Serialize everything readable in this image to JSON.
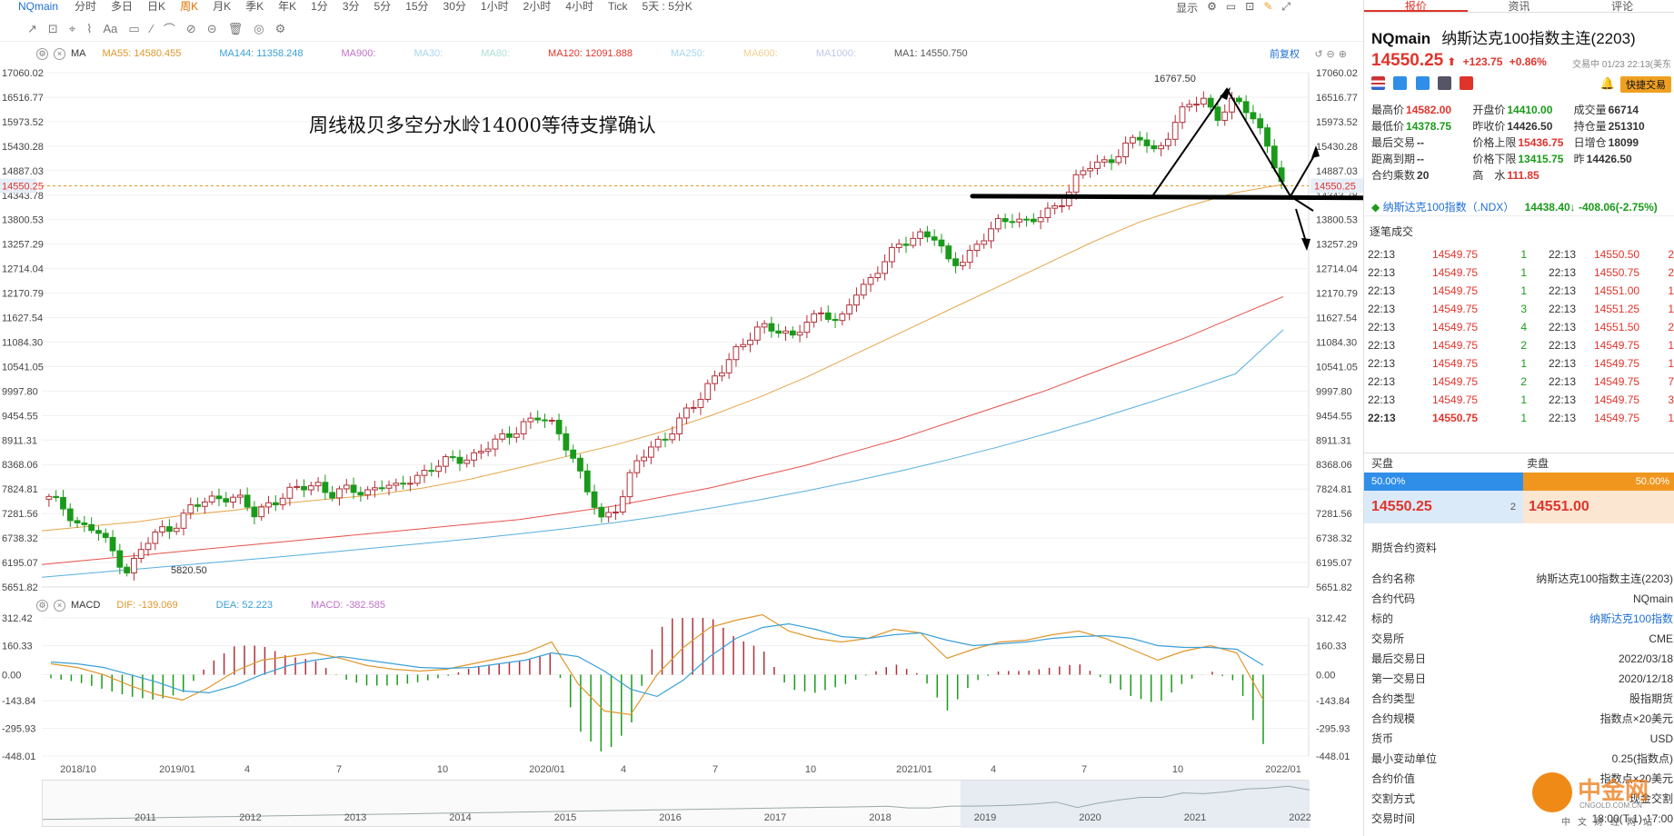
{
  "toolbar": {
    "symbol": "NQmain",
    "periods": [
      "分时",
      "多日",
      "日K",
      "周K",
      "月K",
      "季K",
      "年K",
      "1分",
      "3分",
      "5分",
      "15分",
      "30分",
      "1小时",
      "2小时",
      "4小时",
      "Tick",
      "5天 : 5分K"
    ],
    "active_period": "周K",
    "right_label": "显示"
  },
  "draw_tools": [
    "↗",
    "⊡",
    "⌖",
    "⌇",
    "Aa",
    "▭",
    "∕",
    "⌒",
    "⊘",
    "⊝",
    "🗑",
    "◎",
    "⚙"
  ],
  "ma_legend": {
    "label": "MA",
    "items": [
      {
        "text": "MA55: 14580.455",
        "color": "#e0962b"
      },
      {
        "text": "MA144: 11358.248",
        "color": "#3aa0d8"
      },
      {
        "text": "MA900:",
        "color": "#c070c8"
      },
      {
        "text": "MA30:",
        "color": "#a9d5f0"
      },
      {
        "text": "MA80:",
        "color": "#b0e0d8"
      },
      {
        "text": "MA120: 12091.888",
        "color": "#e0342b"
      },
      {
        "text": "MA250:",
        "color": "#a9d5f0"
      },
      {
        "text": "MA600:",
        "color": "#f0d090"
      },
      {
        "text": "MA1000:",
        "color": "#c0c8e8"
      },
      {
        "text": "MA1: 14550.750",
        "color": "#555555"
      }
    ],
    "fq_label": "前复权"
  },
  "annotation": "周线极贝多空分水岭14000等待支撑确认",
  "chart_data": [
    {
      "type": "candlestick",
      "title": "",
      "ylim": [
        5651.82,
        17060.02
      ],
      "y_ticks": [
        17060.02,
        16516.77,
        15973.52,
        15430.28,
        14887.03,
        14343.78,
        13800.53,
        13257.29,
        12714.04,
        12170.79,
        11627.54,
        11084.3,
        10541.05,
        9997.8,
        9454.55,
        8911.31,
        8368.06,
        7824.81,
        7281.56,
        6738.32,
        6195.07,
        5651.82
      ],
      "x_labels": [
        "2018/10",
        "2019/01",
        "4",
        "7",
        "10",
        "2020/01",
        "4",
        "7",
        "10",
        "2021/01",
        "4",
        "7",
        "10",
        "2022/01"
      ],
      "current_price": 14550.25,
      "annotations": [
        {
          "text": "16767.50",
          "kind": "high"
        },
        {
          "text": "5820.50",
          "kind": "low"
        }
      ],
      "support_level": 14000,
      "weekly_close_path": [
        7600,
        7400,
        7000,
        6900,
        6450,
        6000,
        6550,
        6900,
        7050,
        7400,
        7550,
        7700,
        7600,
        7250,
        7550,
        7700,
        7850,
        7950,
        7700,
        7800,
        7750,
        7950,
        7800,
        8100,
        8250,
        8400,
        8500,
        8600,
        8800,
        9000,
        9300,
        9400,
        9200,
        8700,
        7800,
        7100,
        7500,
        8300,
        8700,
        9000,
        9400,
        9700,
        10300,
        10700,
        11000,
        11500,
        11400,
        11100,
        11600,
        11800,
        11400,
        12200,
        12500,
        12900,
        13300,
        13500,
        13400,
        12800,
        13000,
        13300,
        13700,
        13900,
        13700,
        13900,
        14200,
        14700,
        15000,
        15100,
        15400,
        15600,
        15300,
        15800,
        16300,
        16500,
        16100,
        16400,
        16200,
        15600,
        14550
      ],
      "series": [
        {
          "name": "MA55",
          "values": [
            6900,
            7000,
            7100,
            7250,
            7350,
            7500,
            7600,
            7700,
            7850,
            8050,
            8300,
            8550,
            8800,
            9100,
            9450,
            9850,
            10300,
            10800,
            11300,
            11800,
            12300,
            12800,
            13300,
            13750,
            14100,
            14400,
            14580
          ]
        },
        {
          "name": "MA120",
          "values": [
            6150,
            6250,
            6350,
            6450,
            6550,
            6650,
            6750,
            6850,
            6950,
            7050,
            7150,
            7300,
            7450,
            7650,
            7850,
            8100,
            8350,
            8650,
            8950,
            9300,
            9650,
            10000,
            10400,
            10800,
            11200,
            11650,
            12092
          ]
        },
        {
          "name": "MA144",
          "values": [
            5870,
            5960,
            6050,
            6140,
            6230,
            6320,
            6420,
            6520,
            6620,
            6720,
            6830,
            6950,
            7080,
            7230,
            7400,
            7580,
            7780,
            8000,
            8230,
            8480,
            8750,
            9040,
            9350,
            9680,
            10020,
            10380,
            11358
          ]
        }
      ]
    },
    {
      "type": "bar",
      "title": "",
      "ylim": [
        -448.01,
        312.42
      ],
      "y_ticks": [
        312.42,
        160.33,
        0.0,
        -143.84,
        -295.93,
        -448.01
      ],
      "legend": [
        {
          "text": "DIF: -139.069",
          "color": "#e0962b"
        },
        {
          "text": "DEA: 52.223",
          "color": "#3aa0d8"
        },
        {
          "text": "MACD: -382.585",
          "color": "#c070c8"
        }
      ],
      "label": "MACD",
      "dif": [
        60,
        40,
        0,
        -60,
        -110,
        -140,
        -70,
        20,
        80,
        100,
        120,
        90,
        50,
        30,
        20,
        30,
        60,
        90,
        120,
        180,
        -50,
        -200,
        -220,
        0,
        150,
        260,
        300,
        330,
        240,
        200,
        180,
        200,
        250,
        230,
        90,
        140,
        180,
        190,
        220,
        240,
        200,
        140,
        80,
        130,
        160,
        120,
        -139
      ],
      "dea": [
        70,
        60,
        40,
        0,
        -40,
        -90,
        -100,
        -60,
        0,
        50,
        80,
        100,
        80,
        60,
        40,
        35,
        40,
        60,
        80,
        120,
        100,
        20,
        -80,
        -120,
        -30,
        100,
        200,
        260,
        280,
        250,
        210,
        200,
        220,
        230,
        190,
        160,
        170,
        180,
        200,
        210,
        215,
        200,
        160,
        150,
        150,
        140,
        52
      ]
    }
  ],
  "x_axis": [
    "2018/10",
    "2019/01",
    "4",
    "7",
    "10",
    "2020/01",
    "4",
    "7",
    "10",
    "2021/01",
    "4",
    "7",
    "10",
    "2022/01"
  ],
  "navigator_years": [
    "2011",
    "2012",
    "2013",
    "2014",
    "2015",
    "2016",
    "2017",
    "2018",
    "2019",
    "2020",
    "2021",
    "2022"
  ],
  "panel": {
    "tabs": [
      "报价",
      "资讯",
      "评论"
    ],
    "active_tab": "报价",
    "symbol": "NQmain",
    "name": "纳斯达克100指数主连(2203)",
    "last_price": "14550.25",
    "change": "+123.75",
    "change_pct": "+0.86%",
    "status": "交易中 01/23 22:13(美东",
    "quick_trade": "快捷交易",
    "stats": [
      [
        {
          "k": "最高价",
          "v": "14582.00",
          "c": "#e0342b"
        },
        {
          "k": "开盘价",
          "v": "14410.00",
          "c": "#1a9a1a"
        },
        {
          "k": "成交量",
          "v": "66714",
          "c": "#333"
        }
      ],
      [
        {
          "k": "最低价",
          "v": "14378.75",
          "c": "#1a9a1a"
        },
        {
          "k": "昨收价",
          "v": "14426.50",
          "c": "#333"
        },
        {
          "k": "持仓量",
          "v": "251310",
          "c": "#333"
        }
      ],
      [
        {
          "k": "最后交易",
          "v": "--",
          "c": "#333"
        },
        {
          "k": "价格上限",
          "v": "15436.75",
          "c": "#e0342b"
        },
        {
          "k": "日增仓",
          "v": "18099",
          "c": "#333"
        }
      ],
      [
        {
          "k": "距离到期",
          "v": "--",
          "c": "#333"
        },
        {
          "k": "价格下限",
          "v": "13415.75",
          "c": "#1a9a1a"
        },
        {
          "k": "昨",
          "v": "14426.50",
          "c": "#333"
        }
      ],
      [
        {
          "k": "合约乘数",
          "v": "20",
          "c": "#333"
        },
        {
          "k": "高　水",
          "v": "111.85",
          "c": "#e0342b"
        },
        {
          "k": "",
          "v": "",
          "c": "#333"
        }
      ]
    ],
    "ndx": {
      "name": "纳斯达克100指数（.NDX）",
      "price": "14438.40↓",
      "change": "-408.06(-2.75%)"
    },
    "trades_title": "逐笔成交",
    "trades": [
      {
        "t1": "22:13",
        "p1": "14549.75",
        "q1": "1",
        "t2": "22:13",
        "p2": "14550.50",
        "q2": "2"
      },
      {
        "t1": "22:13",
        "p1": "14549.75",
        "q1": "1",
        "t2": "22:13",
        "p2": "14550.75",
        "q2": "2"
      },
      {
        "t1": "22:13",
        "p1": "14549.75",
        "q1": "1",
        "t2": "22:13",
        "p2": "14551.00",
        "q2": "1"
      },
      {
        "t1": "22:13",
        "p1": "14549.75",
        "q1": "3",
        "t2": "22:13",
        "p2": "14551.25",
        "q2": "1"
      },
      {
        "t1": "22:13",
        "p1": "14549.75",
        "q1": "4",
        "t2": "22:13",
        "p2": "14551.50",
        "q2": "2"
      },
      {
        "t1": "22:13",
        "p1": "14549.75",
        "q1": "2",
        "t2": "22:13",
        "p2": "14549.75",
        "q2": "1"
      },
      {
        "t1": "22:13",
        "p1": "14549.75",
        "q1": "1",
        "t2": "22:13",
        "p2": "14549.75",
        "q2": "1"
      },
      {
        "t1": "22:13",
        "p1": "14549.75",
        "q1": "2",
        "t2": "22:13",
        "p2": "14549.75",
        "q2": "7"
      },
      {
        "t1": "22:13",
        "p1": "14549.75",
        "q1": "1",
        "t2": "22:13",
        "p2": "14549.75",
        "q2": "3"
      },
      {
        "t1": "22:13",
        "p1": "14550.75",
        "q1": "1",
        "t2": "22:13",
        "p2": "14549.75",
        "q2": "1"
      }
    ],
    "book": {
      "buy_label": "买盘",
      "sell_label": "卖盘",
      "buy_pct": "50.00%",
      "sell_pct": "50.00%",
      "bid": "14550.25",
      "bid_qty": "2",
      "ask": "14551.00"
    },
    "info_title": "期货合约资料",
    "info": [
      {
        "k": "合约名称",
        "v": "纳斯达克100指数主连(2203)",
        "link": false
      },
      {
        "k": "合约代码",
        "v": "NQmain",
        "link": false
      },
      {
        "k": "标的",
        "v": "纳斯达克100指数",
        "link": true
      },
      {
        "k": "交易所",
        "v": "CME",
        "link": false
      },
      {
        "k": "最后交易日",
        "v": "2022/03/18",
        "link": false
      },
      {
        "k": "第一交易日",
        "v": "2020/12/18",
        "link": false
      },
      {
        "k": "合约类型",
        "v": "股指期货",
        "link": false
      },
      {
        "k": "合约规模",
        "v": "指数点×20美元",
        "link": false
      },
      {
        "k": "货币",
        "v": "USD",
        "link": false
      },
      {
        "k": "最小变动单位",
        "v": "0.25(指数点)",
        "link": false
      },
      {
        "k": "合约价值",
        "v": "指数点×20美元",
        "link": false
      },
      {
        "k": "交割方式",
        "v": "现金交割",
        "link": false
      },
      {
        "k": "交易时间",
        "v": "18:00(T-1)-17:00",
        "link": false
      }
    ]
  },
  "watermark": {
    "cn": "中金网",
    "en": "CNGOLD.COM.CN",
    "sub": "中文财经网站"
  },
  "colors": {
    "up": "#b0303a",
    "down": "#1a9a1a",
    "accent": "#e0342b",
    "link": "#1e6fd6"
  }
}
